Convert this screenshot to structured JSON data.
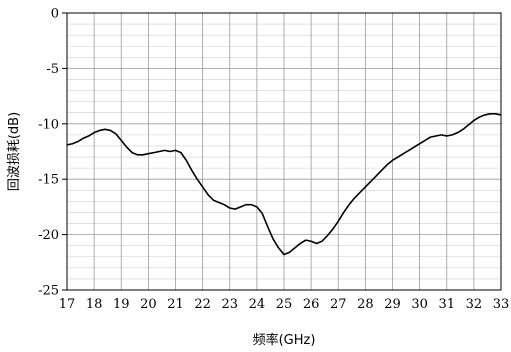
{
  "chart_data": {
    "type": "line",
    "title": "",
    "xlabel": "频率(GHz)",
    "ylabel": "回波损耗(dB)",
    "xlim": [
      17,
      33
    ],
    "ylim": [
      -25,
      0
    ],
    "x_ticks": [
      "17",
      "18",
      "19",
      "20",
      "21",
      "22",
      "23",
      "24",
      "25",
      "26",
      "27",
      "28",
      "29",
      "30",
      "31",
      "32",
      "33"
    ],
    "y_ticks": [
      "0",
      "-5",
      "-10",
      "-15",
      "-20",
      "-25"
    ],
    "grid": true,
    "series": [
      {
        "x": [
          17.0,
          17.2,
          17.4,
          17.6,
          17.8,
          18.0,
          18.2,
          18.4,
          18.6,
          18.8,
          19.0,
          19.2,
          19.4,
          19.6,
          19.8,
          20.0,
          20.2,
          20.4,
          20.6,
          20.8,
          21.0,
          21.2,
          21.4,
          21.6,
          21.8,
          22.0,
          22.2,
          22.4,
          22.6,
          22.8,
          23.0,
          23.2,
          23.4,
          23.6,
          23.8,
          24.0,
          24.2,
          24.4,
          24.6,
          24.8,
          25.0,
          25.2,
          25.4,
          25.6,
          25.8,
          26.0,
          26.2,
          26.4,
          26.6,
          26.8,
          27.0,
          27.2,
          27.4,
          27.6,
          27.8,
          28.0,
          28.2,
          28.4,
          28.6,
          28.8,
          29.0,
          29.2,
          29.4,
          29.6,
          29.8,
          30.0,
          30.2,
          30.4,
          30.6,
          30.8,
          31.0,
          31.2,
          31.4,
          31.6,
          31.8,
          32.0,
          32.2,
          32.4,
          32.6,
          32.8,
          33.0
        ],
        "values": [
          -11.9,
          -11.8,
          -11.6,
          -11.3,
          -11.1,
          -10.8,
          -10.6,
          -10.5,
          -10.6,
          -10.9,
          -11.5,
          -12.1,
          -12.6,
          -12.8,
          -12.8,
          -12.7,
          -12.6,
          -12.5,
          -12.4,
          -12.5,
          -12.4,
          -12.6,
          -13.3,
          -14.2,
          -15.0,
          -15.7,
          -16.4,
          -16.9,
          -17.1,
          -17.3,
          -17.6,
          -17.7,
          -17.5,
          -17.3,
          -17.3,
          -17.5,
          -18.1,
          -19.3,
          -20.4,
          -21.2,
          -21.8,
          -21.6,
          -21.2,
          -20.8,
          -20.5,
          -20.6,
          -20.8,
          -20.6,
          -20.1,
          -19.5,
          -18.8,
          -18.0,
          -17.3,
          -16.7,
          -16.2,
          -15.7,
          -15.2,
          -14.7,
          -14.2,
          -13.7,
          -13.3,
          -13.0,
          -12.7,
          -12.4,
          -12.1,
          -11.8,
          -11.5,
          -11.2,
          -11.1,
          -11.0,
          -11.1,
          -11.0,
          -10.8,
          -10.5,
          -10.1,
          -9.7,
          -9.4,
          -9.2,
          -9.1,
          -9.1,
          -9.2
        ]
      }
    ]
  }
}
